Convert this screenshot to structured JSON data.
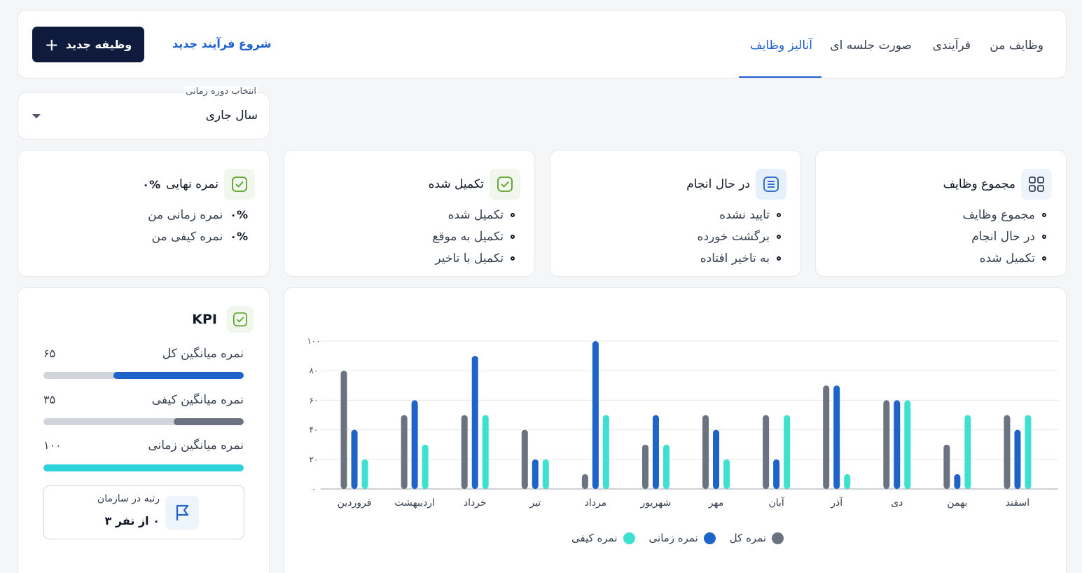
{
  "nav": {
    "tabs": [
      {
        "label": "وظایف من",
        "active": false
      },
      {
        "label": "فرآیندی",
        "active": false
      },
      {
        "label": "صورت جلسه ای",
        "active": false
      },
      {
        "label": "آنالیز وظایف",
        "active": true
      }
    ],
    "start_process_label": "شروع فرآیند جدید",
    "new_task_label": "وظیفه جدید",
    "plus_icon": "plus-icon"
  },
  "period": {
    "label": "انتخاب دوره زمانی",
    "value": "سال جاری"
  },
  "stats": {
    "total": {
      "title": "مجموع وظایف",
      "icon": "grid-icon",
      "items": [
        "مجموع وظایف",
        "در حال انجام",
        "تکمیل شده"
      ]
    },
    "in_progress": {
      "title": "در حال انجام",
      "icon": "list-icon",
      "items": [
        "تایید نشده",
        "برگشت خورده",
        "به تاخیر افتاده"
      ]
    },
    "completed": {
      "title": "تکمیل شده",
      "icon": "check-icon",
      "items": [
        "تکمیل شده",
        "تکمیل به موقع",
        "تکمیل با تاخیر"
      ]
    },
    "final_score": {
      "title": "نمره نهایی",
      "value": "۰%",
      "icon": "check-icon",
      "items": [
        {
          "label": "نمره زمانی من",
          "value": "۰%"
        },
        {
          "label": "نمره کیفی من",
          "value": "۰%"
        }
      ]
    }
  },
  "kpi": {
    "title": "KPI",
    "rows": [
      {
        "label": "نمره میانگین کل",
        "value": "۶۵",
        "percent": 65,
        "color": "#1e63c7"
      },
      {
        "label": "نمره میانگین کیفی",
        "value": "۳۵",
        "percent": 35,
        "color": "#6b7280"
      },
      {
        "label": "نمره میانگین زمانی",
        "value": "۱۰۰",
        "percent": 100,
        "color": "#2ed3d9"
      }
    ],
    "rank_label": "رتبه در سازمان",
    "rank_value": "۰ از نفر ۳"
  },
  "chart_data": {
    "type": "bar",
    "categories": [
      "اسفند",
      "بهمن",
      "دی",
      "آذر",
      "آبان",
      "مهر",
      "شهریور",
      "مرداد",
      "تیر",
      "خرداد",
      "اردیبهشت",
      "فروردین"
    ],
    "series": [
      {
        "name": "نمره کل",
        "color": "#6b7280",
        "values": [
          50,
          30,
          60,
          70,
          50,
          50,
          30,
          10,
          40,
          50,
          50,
          80
        ]
      },
      {
        "name": "نمره زمانی",
        "color": "#1e63c7",
        "values": [
          40,
          10,
          60,
          70,
          20,
          40,
          50,
          100,
          20,
          90,
          60,
          40
        ]
      },
      {
        "name": "نمره کیفی",
        "color": "#3ee0cf",
        "values": [
          50,
          50,
          60,
          10,
          50,
          20,
          30,
          50,
          20,
          50,
          30,
          20
        ]
      }
    ],
    "ylim": [
      0,
      100
    ],
    "yticks": [
      "۰",
      "۲۰",
      "۴۰",
      "۶۰",
      "۸۰",
      "۱۰۰"
    ],
    "ytick_values": [
      0,
      20,
      40,
      60,
      80,
      100
    ],
    "grid": true,
    "legend_position": "bottom-center"
  }
}
